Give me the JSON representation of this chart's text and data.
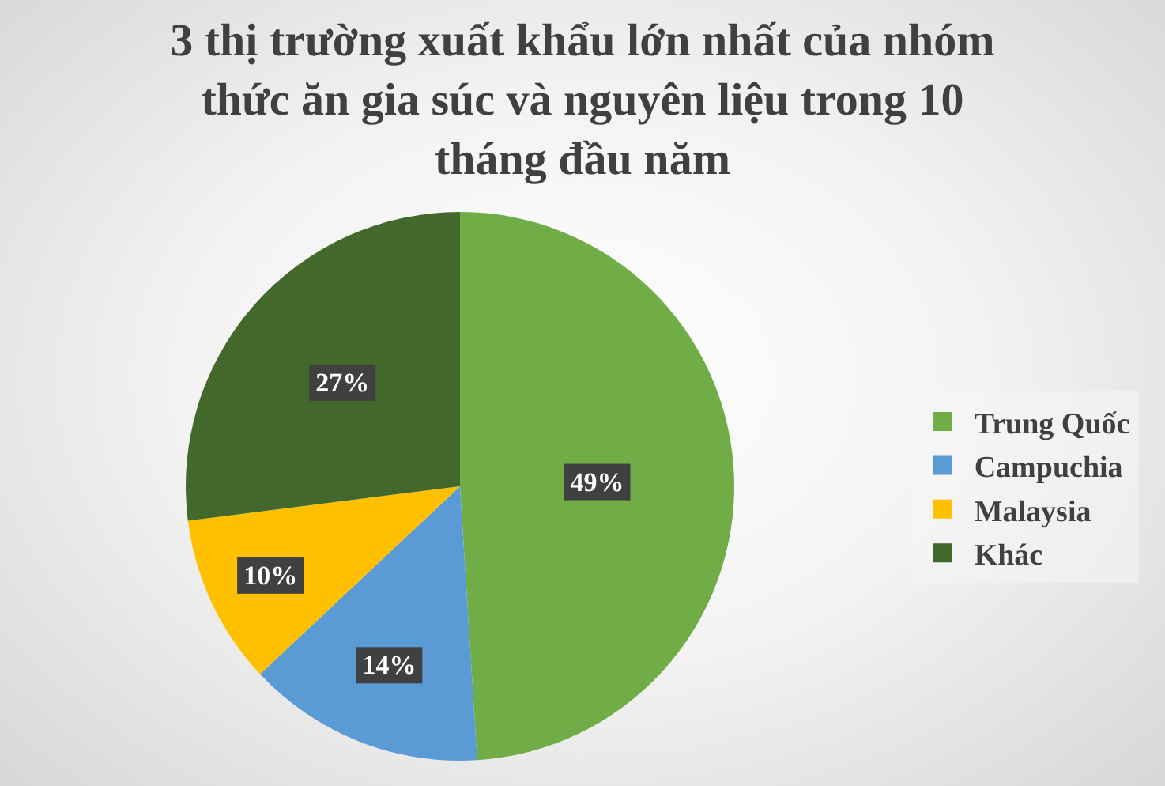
{
  "chart_data": {
    "type": "pie",
    "title": "3 thị trường xuất khẩu lớn nhất của nhóm thức ăn gia súc và nguyên liệu trong 10 tháng đầu năm",
    "categories": [
      "Trung Quốc",
      "Campuchia",
      "Malaysia",
      "Khác"
    ],
    "values": [
      49,
      14,
      10,
      27
    ],
    "colors": [
      "#70ad47",
      "#5b9bd5",
      "#ffc000",
      "#43682b"
    ],
    "value_labels": [
      "49%",
      "14%",
      "10%",
      "27%"
    ],
    "legend": "right"
  }
}
